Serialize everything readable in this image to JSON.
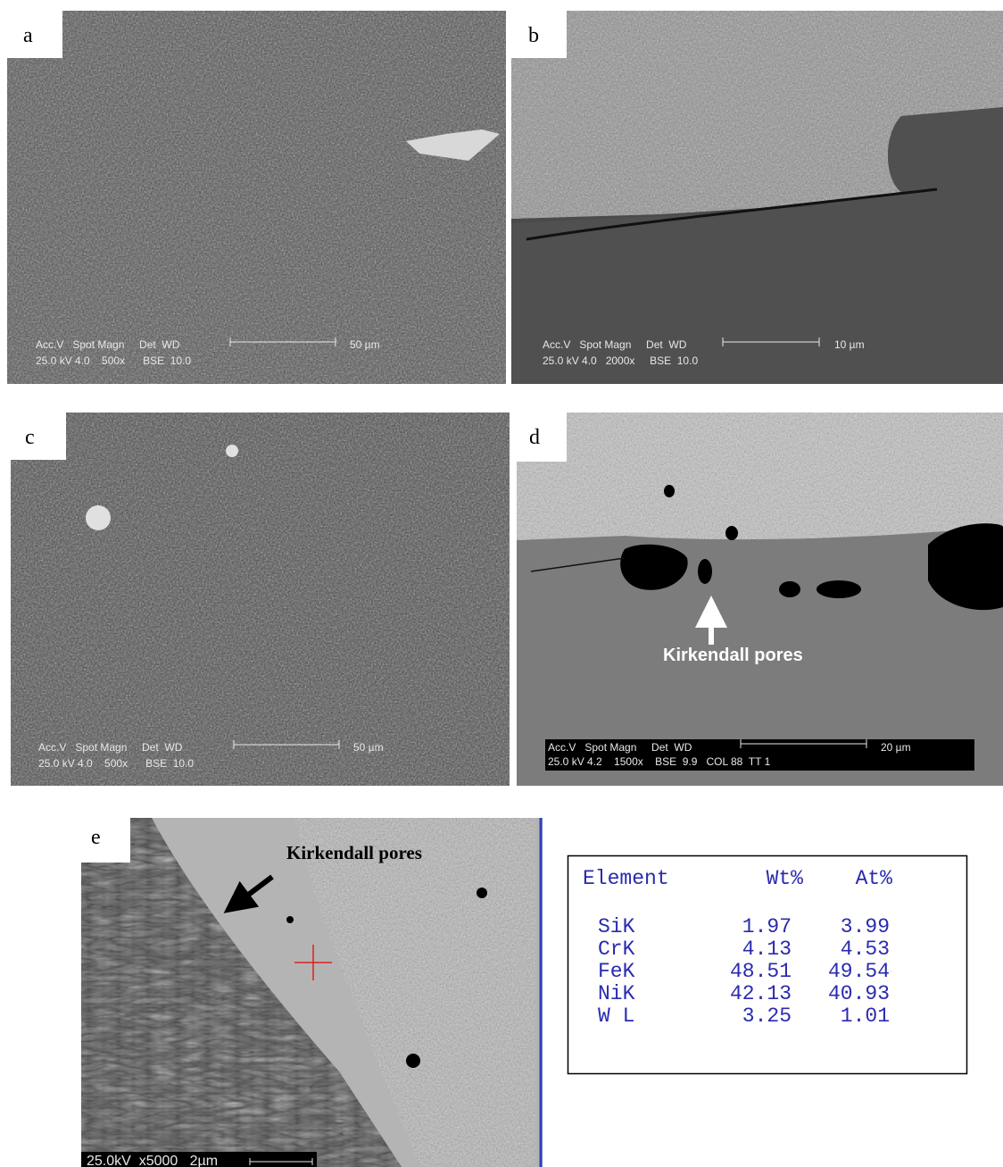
{
  "panels": [
    {
      "label": "a",
      "info": [
        "Acc.V   Spot Magn     Det  WD",
        "25.0 kV 4.0    500x      BSE  10.0"
      ],
      "scale": "50 µm"
    },
    {
      "label": "b",
      "info": [
        "Acc.V   Spot Magn     Det  WD",
        "25.0 kV 4.0   2000x     BSE  10.0"
      ],
      "scale": "10 µm"
    },
    {
      "label": "c",
      "info": [
        "Acc.V   Spot Magn     Det  WD",
        "25.0 kV 4.0    500x      BSE  10.0"
      ],
      "scale": "50 µm"
    },
    {
      "label": "d",
      "info": [
        "Acc.V   Spot Magn     Det  WD",
        "25.0 kV 4.2    1500x    BSE  9.9   COL 88  TT 1"
      ],
      "scale": "20 µm",
      "annotation": "Kirkendall pores"
    },
    {
      "label": "e",
      "info": [
        "25.0kV  x5000   2µm"
      ],
      "annotation": "Kirkendall pores"
    }
  ],
  "table": {
    "header": [
      "Element",
      "Wt%",
      "At%"
    ],
    "rows": [
      [
        "SiK",
        "1.97",
        "3.99"
      ],
      [
        "CrK",
        "4.13",
        "4.53"
      ],
      [
        "FeK",
        "48.51",
        "49.54"
      ],
      [
        "NiK",
        "42.13",
        "40.93"
      ],
      [
        "W L",
        "3.25",
        "1.01"
      ]
    ]
  }
}
